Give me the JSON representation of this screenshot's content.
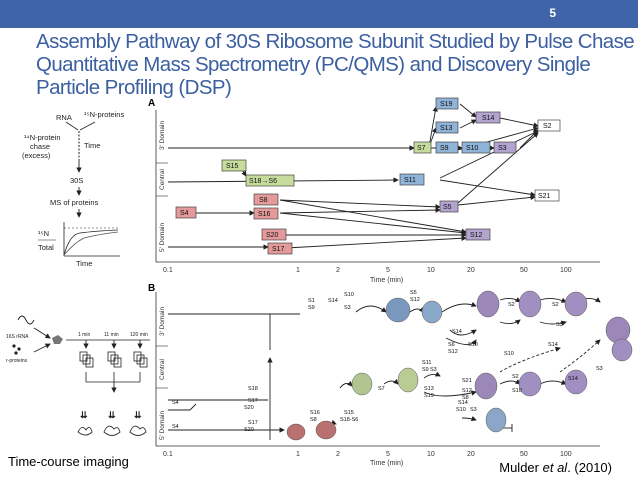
{
  "slide": {
    "number": "5",
    "title_line1": "Assembly Pathway of 30S Ribosome Subunit  Studied by Pulse Chase",
    "title_line2": "Quantitative Mass Spectrometry (PC/QMS) and Discovery Single",
    "title_line3": "Particle Profiling (DSP)",
    "caption_left": "Time-course imaging",
    "caption_author": "Mulder ",
    "caption_etal": "et al",
    "caption_year": ". (2010)"
  },
  "panelA": {
    "label": "A",
    "domains": [
      "3' Domain",
      "Central",
      "5' Domain"
    ],
    "x_ticks": [
      "0.1",
      "1",
      "2",
      "5",
      "10",
      "20",
      "50",
      "100"
    ],
    "x_label": "Time (min)",
    "proteins": [
      "S19",
      "S14",
      "S2",
      "S13",
      "S7",
      "S9",
      "S10",
      "S3",
      "S15",
      "S18→S6",
      "S11",
      "S8",
      "S21",
      "S4",
      "S16",
      "S5",
      "S20",
      "S12",
      "S17"
    ]
  },
  "panelB": {
    "label": "B",
    "domains": [
      "3' Domain",
      "Central",
      "5' Domain"
    ],
    "x_ticks": [
      "0.1",
      "1",
      "2",
      "5",
      "10",
      "20",
      "50",
      "100"
    ],
    "x_label": "Time (min)",
    "labels": [
      "S10",
      "S1",
      "S14",
      "S9",
      "S3",
      "S5",
      "S12",
      "S14",
      "S10",
      "S6",
      "S12",
      "S11",
      "S9",
      "S3",
      "S13",
      "S19",
      "S7",
      "S16",
      "S8",
      "S15",
      "S18-S6",
      "S18",
      "S17",
      "S20",
      "S4",
      "S4",
      "S17",
      "S20",
      "S2",
      "S2",
      "S3",
      "S14",
      "S10",
      "S21",
      "S10",
      "S14",
      "S3",
      "S12",
      "S2",
      "S8",
      "S5",
      "S14",
      "S10",
      "S3"
    ]
  },
  "schematic": {
    "rna": "RNA",
    "n15_proteins": "¹⁵N-proteins",
    "n14_chase": "¹⁴N-protein",
    "chase_word": "chase",
    "excess": "(excess)",
    "time": "Time",
    "s30": "30S",
    "ms_proteins": "MS of proteins",
    "n15": "¹⁵N",
    "total": "Total",
    "time_axis": "Time"
  },
  "imaging": {
    "rrna": "16S rRNA",
    "rproteins": "r-proteins",
    "t1": "1 min",
    "t2": "11 min",
    "t3": "120 min"
  }
}
